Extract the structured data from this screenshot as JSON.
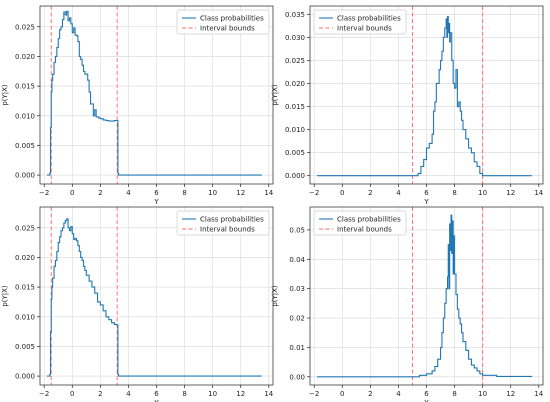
{
  "chart_data": [
    {
      "type": "line",
      "xlabel": "Y",
      "ylabel": "p(Y|X)",
      "xlim": [
        -2.3,
        14.3
      ],
      "ylim": [
        -0.0015,
        0.0285
      ],
      "xticks": [
        -2,
        0,
        2,
        4,
        6,
        8,
        10,
        12,
        14
      ],
      "yticks": [
        0.0,
        0.005,
        0.01,
        0.015,
        0.02,
        0.025
      ],
      "ytick_labels": [
        "0.000",
        "0.005",
        "0.010",
        "0.015",
        "0.020",
        "0.025"
      ],
      "grid": true,
      "legend_position": "top-right",
      "series": [
        {
          "name": "Class probabilities",
          "color": "#1f77b4",
          "x": [
            -1.8,
            -1.6,
            -1.55,
            -1.5,
            -1.45,
            -1.4,
            -1.3,
            -1.2,
            -1.1,
            -1.0,
            -0.9,
            -0.8,
            -0.7,
            -0.6,
            -0.5,
            -0.4,
            -0.3,
            -0.2,
            -0.1,
            0.0,
            0.1,
            0.2,
            0.3,
            0.4,
            0.5,
            0.6,
            0.7,
            0.8,
            0.9,
            1.0,
            1.1,
            1.2,
            1.3,
            1.4,
            1.5,
            1.6,
            1.7,
            1.8,
            1.9,
            2.0,
            2.2,
            2.4,
            2.6,
            2.8,
            3.0,
            3.2,
            3.25,
            3.3,
            4.0,
            8.0,
            13.5
          ],
          "y": [
            0.0,
            0.0003,
            0.008,
            0.014,
            0.016,
            0.017,
            0.019,
            0.02,
            0.0215,
            0.023,
            0.0245,
            0.025,
            0.0262,
            0.0275,
            0.027,
            0.0276,
            0.026,
            0.0265,
            0.0255,
            0.024,
            0.0248,
            0.0236,
            0.0235,
            0.0225,
            0.02,
            0.0195,
            0.0185,
            0.0175,
            0.017,
            0.017,
            0.016,
            0.014,
            0.012,
            0.012,
            0.01,
            0.011,
            0.0098,
            0.0098,
            0.0096,
            0.0095,
            0.0093,
            0.0092,
            0.0091,
            0.0091,
            0.0092,
            0.0092,
            0.0003,
            0.0,
            0.0,
            0.0,
            0.0
          ]
        },
        {
          "name": "Interval bounds",
          "color": "#ff6666",
          "dashed": true,
          "vlines": [
            -1.5,
            3.2
          ]
        }
      ]
    },
    {
      "type": "line",
      "xlabel": "Y",
      "ylabel": "p(Y|X)",
      "xlim": [
        -2.3,
        14.3
      ],
      "ylim": [
        -0.0018,
        0.0368
      ],
      "xticks": [
        -2,
        0,
        2,
        4,
        6,
        8,
        10,
        12,
        14
      ],
      "yticks": [
        0.0,
        0.005,
        0.01,
        0.015,
        0.02,
        0.025,
        0.03,
        0.035
      ],
      "ytick_labels": [
        "0.000",
        "0.005",
        "0.010",
        "0.015",
        "0.020",
        "0.025",
        "0.030",
        "0.035"
      ],
      "grid": true,
      "legend_position": "top-left",
      "series": [
        {
          "name": "Class probabilities",
          "color": "#1f77b4",
          "x": [
            -1.8,
            5.0,
            5.4,
            5.6,
            5.8,
            6.0,
            6.2,
            6.4,
            6.5,
            6.6,
            6.7,
            6.8,
            6.9,
            7.0,
            7.1,
            7.2,
            7.3,
            7.4,
            7.45,
            7.5,
            7.55,
            7.6,
            7.65,
            7.7,
            7.8,
            7.9,
            8.0,
            8.1,
            8.2,
            8.3,
            8.4,
            8.5,
            8.6,
            8.8,
            9.0,
            9.2,
            9.4,
            9.6,
            9.8,
            10.0,
            11.0,
            13.5
          ],
          "y": [
            0.0,
            0.0,
            0.0005,
            0.002,
            0.0035,
            0.006,
            0.007,
            0.009,
            0.014,
            0.016,
            0.02,
            0.02,
            0.023,
            0.025,
            0.027,
            0.03,
            0.032,
            0.034,
            0.03,
            0.0345,
            0.031,
            0.033,
            0.029,
            0.031,
            0.025,
            0.02,
            0.019,
            0.023,
            0.015,
            0.016,
            0.014,
            0.012,
            0.01,
            0.008,
            0.006,
            0.005,
            0.003,
            0.002,
            0.0005,
            0.0,
            0.0,
            0.0
          ]
        },
        {
          "name": "Interval bounds",
          "color": "#ff6666",
          "dashed": true,
          "vlines": [
            5.0,
            10.0
          ]
        }
      ]
    },
    {
      "type": "line",
      "xlabel": "Y",
      "ylabel": "p(Y|X)",
      "xlim": [
        -2.3,
        14.3
      ],
      "ylim": [
        -0.0015,
        0.0285
      ],
      "xticks": [
        -2,
        0,
        2,
        4,
        6,
        8,
        10,
        12,
        14
      ],
      "yticks": [
        0.0,
        0.005,
        0.01,
        0.015,
        0.02,
        0.025
      ],
      "ytick_labels": [
        "0.000",
        "0.005",
        "0.010",
        "0.015",
        "0.020",
        "0.025"
      ],
      "grid": true,
      "legend_position": "top-right",
      "series": [
        {
          "name": "Class probabilities",
          "color": "#1f77b4",
          "x": [
            -1.8,
            -1.6,
            -1.55,
            -1.5,
            -1.45,
            -1.4,
            -1.3,
            -1.2,
            -1.1,
            -1.0,
            -0.9,
            -0.8,
            -0.7,
            -0.6,
            -0.5,
            -0.4,
            -0.3,
            -0.2,
            -0.1,
            0.0,
            0.1,
            0.2,
            0.3,
            0.4,
            0.5,
            0.6,
            0.7,
            0.8,
            0.9,
            1.0,
            1.2,
            1.4,
            1.6,
            1.8,
            2.0,
            2.2,
            2.4,
            2.6,
            2.8,
            3.0,
            3.2,
            3.25,
            3.3,
            4.0,
            8.0,
            13.5
          ],
          "y": [
            0.0,
            0.0003,
            0.0075,
            0.013,
            0.015,
            0.0165,
            0.0185,
            0.0195,
            0.021,
            0.0225,
            0.0235,
            0.0245,
            0.025,
            0.0258,
            0.0262,
            0.0265,
            0.025,
            0.0245,
            0.0252,
            0.024,
            0.023,
            0.0232,
            0.0228,
            0.022,
            0.021,
            0.02,
            0.0195,
            0.0185,
            0.0178,
            0.017,
            0.016,
            0.015,
            0.014,
            0.0125,
            0.012,
            0.011,
            0.01,
            0.0095,
            0.009,
            0.0087,
            0.0085,
            0.0003,
            0.0,
            0.0,
            0.0,
            0.0
          ]
        },
        {
          "name": "Interval bounds",
          "color": "#ff6666",
          "dashed": true,
          "vlines": [
            -1.5,
            3.2
          ]
        }
      ]
    },
    {
      "type": "line",
      "xlabel": "Y",
      "ylabel": "p(Y|X)",
      "xlim": [
        -2.3,
        14.3
      ],
      "ylim": [
        -0.0028,
        0.0578
      ],
      "xticks": [
        -2,
        0,
        2,
        4,
        6,
        8,
        10,
        12,
        14
      ],
      "yticks": [
        0.0,
        0.01,
        0.02,
        0.03,
        0.04,
        0.05
      ],
      "ytick_labels": [
        "0.00",
        "0.01",
        "0.02",
        "0.03",
        "0.04",
        "0.05"
      ],
      "grid": true,
      "legend_position": "top-left",
      "series": [
        {
          "name": "Class probabilities",
          "color": "#1f77b4",
          "x": [
            -1.8,
            5.0,
            5.5,
            6.0,
            6.4,
            6.6,
            6.8,
            7.0,
            7.1,
            7.2,
            7.3,
            7.4,
            7.5,
            7.55,
            7.6,
            7.65,
            7.7,
            7.75,
            7.8,
            7.85,
            7.9,
            7.95,
            8.0,
            8.1,
            8.2,
            8.3,
            8.4,
            8.5,
            8.6,
            8.8,
            9.0,
            9.2,
            9.4,
            9.6,
            9.8,
            10.0,
            11.0,
            13.5
          ],
          "y": [
            0.0,
            0.0,
            0.0005,
            0.001,
            0.002,
            0.0035,
            0.006,
            0.01,
            0.015,
            0.02,
            0.025,
            0.03,
            0.034,
            0.045,
            0.03,
            0.052,
            0.043,
            0.055,
            0.042,
            0.053,
            0.035,
            0.048,
            0.035,
            0.028,
            0.023,
            0.02,
            0.018,
            0.015,
            0.012,
            0.009,
            0.006,
            0.004,
            0.003,
            0.002,
            0.001,
            0.0005,
            0.0001,
            0.0
          ]
        },
        {
          "name": "Interval bounds",
          "color": "#ff6666",
          "dashed": true,
          "vlines": [
            5.0,
            10.0
          ]
        }
      ]
    }
  ]
}
